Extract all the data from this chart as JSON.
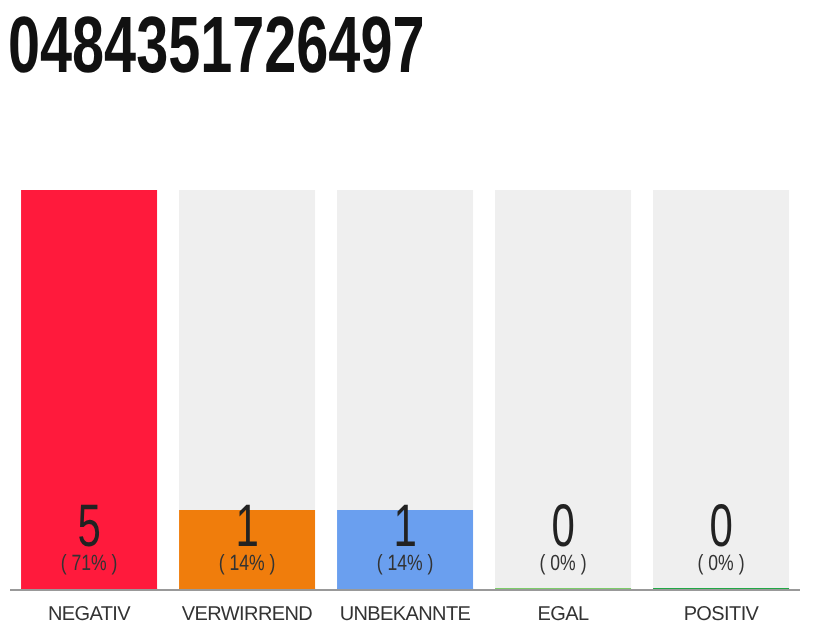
{
  "chart_data": {
    "type": "bar",
    "title": "0484351726497",
    "categories": [
      "NEGATIV",
      "VERWIRREND",
      "UNBEKANNTE",
      "EGAL",
      "POSITIV"
    ],
    "values": [
      5,
      1,
      1,
      0,
      0
    ],
    "colors": [
      "#ff1a3c",
      "#f07d0c",
      "#6a9fef",
      "#7dcc6a",
      "#22a846"
    ],
    "data_labels": true,
    "annotations": [
      "( 71% )",
      "( 14% )",
      "( 14% )",
      "( 0% )",
      "( 0% )"
    ]
  }
}
